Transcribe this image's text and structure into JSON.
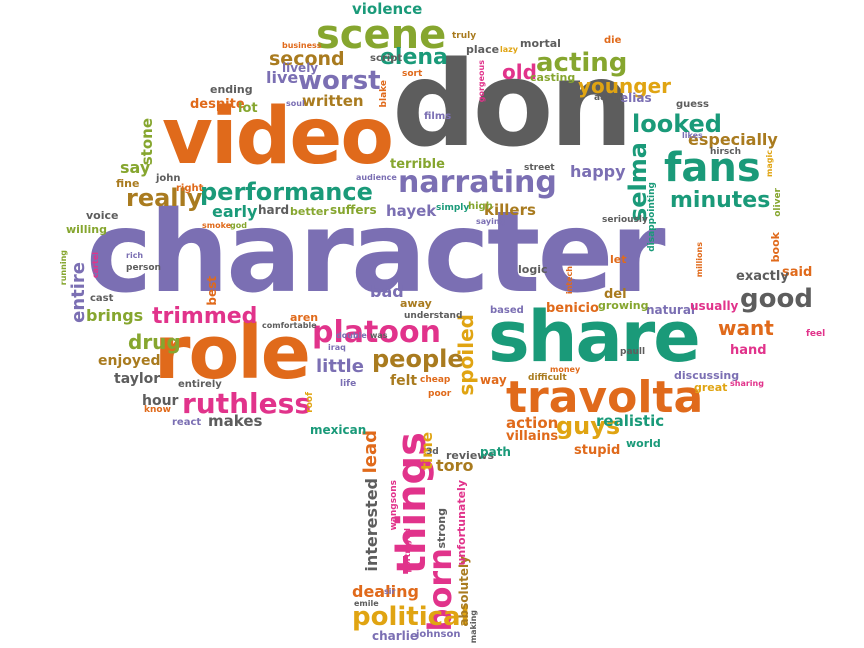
{
  "palette": {
    "orange": "#e06a1b",
    "purple": "#7b6fb3",
    "green": "#1a9a79",
    "gray": "#5d5d5d",
    "pink": "#e1338b",
    "olive": "#86a62f",
    "yellow": "#e0a412",
    "gold": "#a97b1f"
  },
  "words": [
    {
      "text": "character",
      "color": "#7b6fb3",
      "vertical": false
    },
    {
      "text": "don",
      "color": "#5d5d5d",
      "vertical": false
    },
    {
      "text": "video",
      "color": "#e06a1b",
      "vertical": false
    },
    {
      "text": "role",
      "color": "#e06a1b",
      "vertical": false
    },
    {
      "text": "share",
      "color": "#1a9a79",
      "vertical": false
    },
    {
      "text": "travolta",
      "color": "#e06a1b",
      "vertical": false
    },
    {
      "text": "scene",
      "color": "#86a62f",
      "vertical": false
    },
    {
      "text": "narrating",
      "color": "#7b6fb3",
      "vertical": false
    },
    {
      "text": "fans",
      "color": "#1a9a79",
      "vertical": false
    },
    {
      "text": "performance",
      "color": "#1a9a79",
      "vertical": false
    },
    {
      "text": "platoon",
      "color": "#e1338b",
      "vertical": false
    },
    {
      "text": "ruthless",
      "color": "#e1338b",
      "vertical": false
    },
    {
      "text": "things",
      "color": "#e1338b",
      "vertical": true
    },
    {
      "text": "born",
      "color": "#e1338b",
      "vertical": true
    },
    {
      "text": "political",
      "color": "#e0a412",
      "vertical": false
    },
    {
      "text": "people",
      "color": "#a97b1f",
      "vertical": false
    },
    {
      "text": "worst",
      "color": "#7b6fb3",
      "vertical": false
    },
    {
      "text": "acting",
      "color": "#86a62f",
      "vertical": false
    },
    {
      "text": "elena",
      "color": "#1a9a79",
      "vertical": false
    },
    {
      "text": "looked",
      "color": "#1a9a79",
      "vertical": false
    },
    {
      "text": "minutes",
      "color": "#1a9a79",
      "vertical": false
    },
    {
      "text": "good",
      "color": "#5d5d5d",
      "vertical": false
    },
    {
      "text": "guys",
      "color": "#e0a412",
      "vertical": false
    },
    {
      "text": "trimmed",
      "color": "#e1338b",
      "vertical": false
    },
    {
      "text": "really",
      "color": "#a97b1f",
      "vertical": false
    },
    {
      "text": "second",
      "color": "#a97b1f",
      "vertical": false
    },
    {
      "text": "old",
      "color": "#e1338b",
      "vertical": false
    },
    {
      "text": "younger",
      "color": "#e0a412",
      "vertical": false
    },
    {
      "text": "selma",
      "color": "#1a9a79",
      "vertical": true
    },
    {
      "text": "drug",
      "color": "#86a62f",
      "vertical": false
    },
    {
      "text": "want",
      "color": "#e06a1b",
      "vertical": false
    },
    {
      "text": "spoiled",
      "color": "#e0a412",
      "vertical": true
    },
    {
      "text": "violence",
      "color": "#1a9a79",
      "vertical": false
    },
    {
      "text": "written",
      "color": "#a97b1f",
      "vertical": false
    },
    {
      "text": "live",
      "color": "#7b6fb3",
      "vertical": false
    },
    {
      "text": "stone",
      "color": "#86a62f",
      "vertical": true
    },
    {
      "text": "especially",
      "color": "#a97b1f",
      "vertical": false
    },
    {
      "text": "happy",
      "color": "#7b6fb3",
      "vertical": false
    },
    {
      "text": "early",
      "color": "#1a9a79",
      "vertical": false
    },
    {
      "text": "hayek",
      "color": "#7b6fb3",
      "vertical": false
    },
    {
      "text": "killers",
      "color": "#a97b1f",
      "vertical": false
    },
    {
      "text": "time",
      "color": "#e0a412",
      "vertical": true
    },
    {
      "text": "entire",
      "color": "#7b6fb3",
      "vertical": true
    },
    {
      "text": "brings",
      "color": "#86a62f",
      "vertical": false
    },
    {
      "text": "enjoyed",
      "color": "#a97b1f",
      "vertical": false
    },
    {
      "text": "taylor",
      "color": "#5d5d5d",
      "vertical": false
    },
    {
      "text": "hour",
      "color": "#5d5d5d",
      "vertical": false
    },
    {
      "text": "makes",
      "color": "#5d5d5d",
      "vertical": false
    },
    {
      "text": "little",
      "color": "#7b6fb3",
      "vertical": false
    },
    {
      "text": "felt",
      "color": "#a97b1f",
      "vertical": false
    },
    {
      "text": "bad",
      "color": "#7b6fb3",
      "vertical": false
    },
    {
      "text": "toro",
      "color": "#a97b1f",
      "vertical": false
    },
    {
      "text": "lead",
      "color": "#e06a1b",
      "vertical": true
    },
    {
      "text": "interested",
      "color": "#5d5d5d",
      "vertical": true
    },
    {
      "text": "dealing",
      "color": "#e06a1b",
      "vertical": false
    },
    {
      "text": "action",
      "color": "#e06a1b",
      "vertical": false
    },
    {
      "text": "realistic",
      "color": "#1a9a79",
      "vertical": false
    },
    {
      "text": "villains",
      "color": "#e06a1b",
      "vertical": false
    },
    {
      "text": "stupid",
      "color": "#e06a1b",
      "vertical": false
    },
    {
      "text": "say",
      "color": "#86a62f",
      "vertical": false
    },
    {
      "text": "lively",
      "color": "#7b6fb3",
      "vertical": false
    },
    {
      "text": "ending",
      "color": "#5d5d5d",
      "vertical": false
    },
    {
      "text": "despite",
      "color": "#e06a1b",
      "vertical": false
    },
    {
      "text": "lot",
      "color": "#86a62f",
      "vertical": false
    },
    {
      "text": "mexican",
      "color": "#1a9a79",
      "vertical": false
    },
    {
      "text": "charlie",
      "color": "#7b6fb3",
      "vertical": false
    },
    {
      "text": "johnson",
      "color": "#7b6fb3",
      "vertical": false
    },
    {
      "text": "absolutely",
      "color": "#a97b1f",
      "vertical": true
    },
    {
      "text": "unfortunately",
      "color": "#e1338b",
      "vertical": true
    },
    {
      "text": "strong",
      "color": "#5d5d5d",
      "vertical": true
    },
    {
      "text": "reviews",
      "color": "#5d5d5d",
      "vertical": false
    },
    {
      "text": "path",
      "color": "#1a9a79",
      "vertical": false
    },
    {
      "text": "world",
      "color": "#1a9a79",
      "vertical": false
    },
    {
      "text": "discussing",
      "color": "#7b6fb3",
      "vertical": false
    },
    {
      "text": "great",
      "color": "#e0a412",
      "vertical": false
    },
    {
      "text": "hand",
      "color": "#e1338b",
      "vertical": false
    },
    {
      "text": "said",
      "color": "#e06a1b",
      "vertical": false
    },
    {
      "text": "exactly",
      "color": "#5d5d5d",
      "vertical": false
    },
    {
      "text": "natural",
      "color": "#7b6fb3",
      "vertical": false
    },
    {
      "text": "usually",
      "color": "#e1338b",
      "vertical": false
    },
    {
      "text": "benicio",
      "color": "#e06a1b",
      "vertical": false
    },
    {
      "text": "del",
      "color": "#a97b1f",
      "vertical": false
    },
    {
      "text": "growing",
      "color": "#86a62f",
      "vertical": false
    },
    {
      "text": "terrible",
      "color": "#86a62f",
      "vertical": false
    },
    {
      "text": "films",
      "color": "#7b6fb3",
      "vertical": false
    },
    {
      "text": "mortal",
      "color": "#5d5d5d",
      "vertical": false
    },
    {
      "text": "casting",
      "color": "#86a62f",
      "vertical": false
    },
    {
      "text": "elias",
      "color": "#7b6fb3",
      "vertical": false
    },
    {
      "text": "guess",
      "color": "#5d5d5d",
      "vertical": false
    },
    {
      "text": "suffers",
      "color": "#86a62f",
      "vertical": false
    },
    {
      "text": "hard",
      "color": "#5d5d5d",
      "vertical": false
    },
    {
      "text": "better",
      "color": "#86a62f",
      "vertical": false
    },
    {
      "text": "voice",
      "color": "#5d5d5d",
      "vertical": false
    },
    {
      "text": "willing",
      "color": "#86a62f",
      "vertical": false
    },
    {
      "text": "fine",
      "color": "#a97b1f",
      "vertical": false
    },
    {
      "text": "john",
      "color": "#5d5d5d",
      "vertical": false
    },
    {
      "text": "right",
      "color": "#e06a1b",
      "vertical": false
    },
    {
      "text": "best",
      "color": "#e06a1b",
      "vertical": true
    },
    {
      "text": "aren",
      "color": "#e06a1b",
      "vertical": false
    },
    {
      "text": "comfortable",
      "color": "#5d5d5d",
      "vertical": false
    },
    {
      "text": "understand",
      "color": "#5d5d5d",
      "vertical": false
    },
    {
      "text": "away",
      "color": "#a97b1f",
      "vertical": false
    },
    {
      "text": "logic",
      "color": "#5d5d5d",
      "vertical": false
    },
    {
      "text": "let",
      "color": "#e06a1b",
      "vertical": false
    },
    {
      "text": "book",
      "color": "#e06a1b",
      "vertical": true
    },
    {
      "text": "feel",
      "color": "#e1338b",
      "vertical": false
    },
    {
      "text": "way",
      "color": "#e06a1b",
      "vertical": false
    },
    {
      "text": "difficult",
      "color": "#a97b1f",
      "vertical": false
    },
    {
      "text": "money",
      "color": "#e06a1b",
      "vertical": false
    },
    {
      "text": "cheap",
      "color": "#e06a1b",
      "vertical": false
    },
    {
      "text": "poor",
      "color": "#e06a1b",
      "vertical": false
    },
    {
      "text": "react",
      "color": "#7b6fb3",
      "vertical": false
    },
    {
      "text": "know",
      "color": "#e06a1b",
      "vertical": false
    },
    {
      "text": "entirely",
      "color": "#5d5d5d",
      "vertical": false
    },
    {
      "text": "cast",
      "color": "#5d5d5d",
      "vertical": false
    },
    {
      "text": "person",
      "color": "#5d5d5d",
      "vertical": false
    },
    {
      "text": "rich",
      "color": "#7b6fb3",
      "vertical": false
    },
    {
      "text": "cartel",
      "color": "#e1338b",
      "vertical": true
    },
    {
      "text": "running",
      "color": "#86a62f",
      "vertical": true
    },
    {
      "text": "smoke",
      "color": "#e06a1b",
      "vertical": false
    },
    {
      "text": "god",
      "color": "#86a62f",
      "vertical": false
    },
    {
      "text": "street",
      "color": "#5d5d5d",
      "vertical": false
    },
    {
      "text": "audience",
      "color": "#7b6fb3",
      "vertical": false
    },
    {
      "text": "simply",
      "color": "#1a9a79",
      "vertical": false
    },
    {
      "text": "high",
      "color": "#86a62f",
      "vertical": false
    },
    {
      "text": "saying",
      "color": "#7b6fb3",
      "vertical": false
    },
    {
      "text": "seriously",
      "color": "#5d5d5d",
      "vertical": false
    },
    {
      "text": "disappointing",
      "color": "#1a9a79",
      "vertical": true
    },
    {
      "text": "millions",
      "color": "#e06a1b",
      "vertical": true
    },
    {
      "text": "oliver",
      "color": "#86a62f",
      "vertical": true
    },
    {
      "text": "magic",
      "color": "#e0a412",
      "vertical": true
    },
    {
      "text": "hirsch",
      "color": "#5d5d5d",
      "vertical": false
    },
    {
      "text": "likes",
      "color": "#7b6fb3",
      "vertical": false
    },
    {
      "text": "aaron",
      "color": "#5d5d5d",
      "vertical": false
    },
    {
      "text": "sort",
      "color": "#e06a1b",
      "vertical": false
    },
    {
      "text": "place",
      "color": "#5d5d5d",
      "vertical": false
    },
    {
      "text": "lazy",
      "color": "#e0a412",
      "vertical": false
    },
    {
      "text": "truly",
      "color": "#a97b1f",
      "vertical": false
    },
    {
      "text": "die",
      "color": "#e06a1b",
      "vertical": false
    },
    {
      "text": "business",
      "color": "#e06a1b",
      "vertical": false
    },
    {
      "text": "script",
      "color": "#5d5d5d",
      "vertical": false
    },
    {
      "text": "soul",
      "color": "#7b6fb3",
      "vertical": false
    },
    {
      "text": "blake",
      "color": "#e06a1b",
      "vertical": true
    },
    {
      "text": "gorgeous",
      "color": "#e1338b",
      "vertical": true
    },
    {
      "text": "double",
      "color": "#7b6fb3",
      "vertical": false
    },
    {
      "text": "was",
      "color": "#5d5d5d",
      "vertical": false
    },
    {
      "text": "iraq",
      "color": "#7b6fb3",
      "vertical": false
    },
    {
      "text": "life",
      "color": "#7b6fb3",
      "vertical": false
    },
    {
      "text": "roof",
      "color": "#e0a412",
      "vertical": true
    },
    {
      "text": "based",
      "color": "#7b6fb3",
      "vertical": false
    },
    {
      "text": "intech",
      "color": "#e06a1b",
      "vertical": true
    },
    {
      "text": "paull",
      "color": "#5d5d5d",
      "vertical": false
    },
    {
      "text": "sharing",
      "color": "#e1338b",
      "vertical": false
    },
    {
      "text": "portrayed",
      "color": "#e1338b",
      "vertical": true
    },
    {
      "text": "wangsons",
      "color": "#e1338b",
      "vertical": true
    },
    {
      "text": "sir",
      "color": "#7b6fb3",
      "vertical": false
    },
    {
      "text": "emile",
      "color": "#5d5d5d",
      "vertical": false
    },
    {
      "text": "making",
      "color": "#5d5d5d",
      "vertical": true
    },
    {
      "text": "3d",
      "color": "#5d5d5d",
      "vertical": false
    }
  ]
}
